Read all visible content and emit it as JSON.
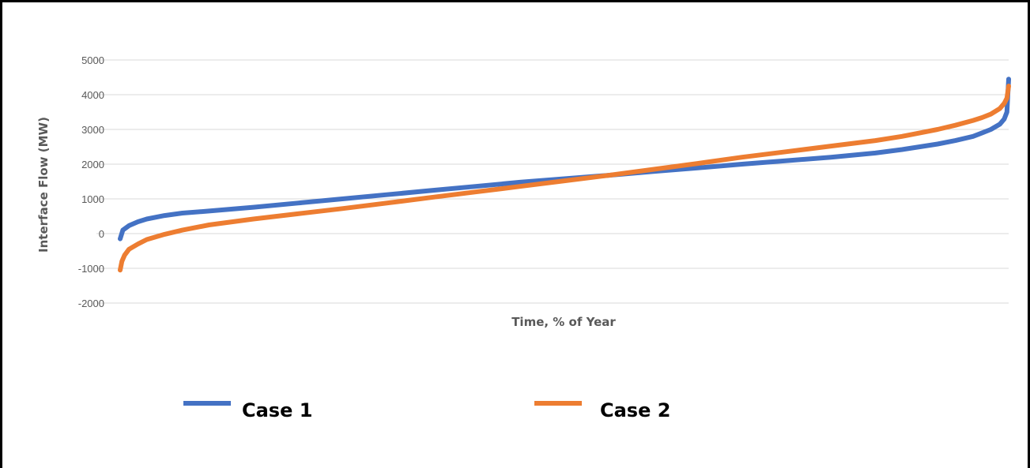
{
  "chart_data": {
    "type": "line",
    "xlabel": "Time, % of Year",
    "ylabel": "Interface Flow (MW)",
    "ylim": [
      -2000,
      5000
    ],
    "yticks": [
      -2000,
      -1000,
      0,
      1000,
      2000,
      3000,
      4000,
      5000
    ],
    "ytick_labels": [
      "-2000",
      "-1000",
      "0",
      "1000",
      "2000",
      "3000",
      "4000",
      "5000"
    ],
    "xlim": [
      0,
      100
    ],
    "grid": "horizontal",
    "legend_position": "bottom",
    "series": [
      {
        "name": "Case 1",
        "color": "#4472C4",
        "x": [
          0,
          0.3,
          1,
          2,
          3,
          5,
          7,
          10,
          15,
          20,
          25,
          30,
          35,
          40,
          45,
          50,
          55,
          60,
          65,
          70,
          75,
          80,
          85,
          88,
          90,
          92,
          94,
          96,
          97,
          98,
          99,
          99.5,
          99.8,
          100
        ],
        "values": [
          -150,
          100,
          230,
          340,
          420,
          520,
          590,
          650,
          760,
          880,
          1000,
          1120,
          1240,
          1360,
          1480,
          1580,
          1680,
          1790,
          1890,
          2000,
          2100,
          2200,
          2320,
          2420,
          2500,
          2580,
          2680,
          2800,
          2900,
          3000,
          3150,
          3300,
          3500,
          4450
        ]
      },
      {
        "name": "Case 2",
        "color": "#ED7D31",
        "x": [
          0,
          0.2,
          0.5,
          1,
          2,
          3,
          5,
          7,
          10,
          15,
          20,
          25,
          30,
          35,
          40,
          45,
          50,
          55,
          60,
          65,
          70,
          75,
          80,
          85,
          88,
          90,
          92,
          94,
          96,
          97,
          98,
          99,
          99.5,
          99.8,
          100
        ],
        "values": [
          -1050,
          -800,
          -620,
          -450,
          -300,
          -170,
          -20,
          100,
          250,
          420,
          570,
          720,
          880,
          1040,
          1200,
          1360,
          1520,
          1680,
          1850,
          2020,
          2200,
          2360,
          2520,
          2680,
          2800,
          2900,
          3000,
          3120,
          3260,
          3340,
          3440,
          3600,
          3750,
          3900,
          4250
        ]
      }
    ]
  }
}
